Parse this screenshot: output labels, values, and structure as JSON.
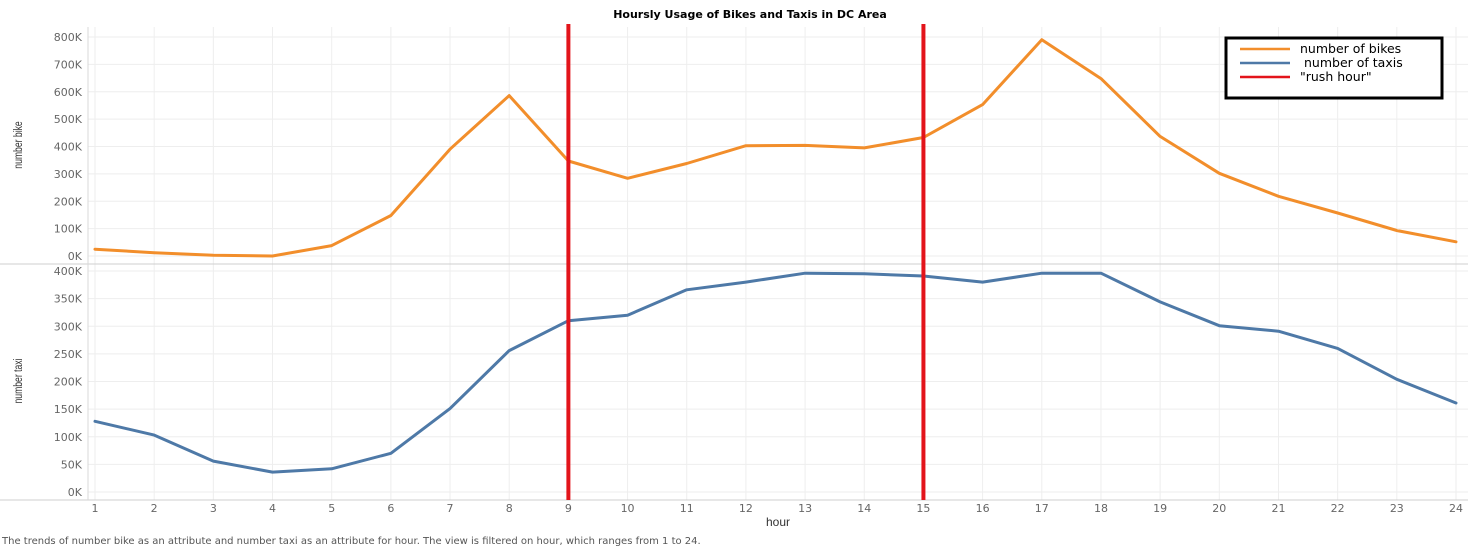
{
  "chart_data": {
    "type": "line",
    "title": "Hoursly Usage of Bikes and Taxis in DC Area",
    "xlabel": "hour",
    "x": [
      1,
      2,
      3,
      4,
      5,
      6,
      7,
      8,
      9,
      10,
      11,
      12,
      13,
      14,
      15,
      16,
      17,
      18,
      19,
      20,
      21,
      22,
      23,
      24
    ],
    "grid": true,
    "panels": [
      {
        "ylabel": "number bike",
        "ylim": [
          0,
          800000
        ],
        "yticks": [
          0,
          100000,
          200000,
          300000,
          400000,
          500000,
          600000,
          700000,
          800000
        ],
        "ytick_labels": [
          "0K",
          "100K",
          "200K",
          "300K",
          "400K",
          "500K",
          "600K",
          "700K",
          "800K"
        ],
        "series": [
          {
            "name": "number of bikes",
            "color": "#f28e2b",
            "values": [
              25000,
              12000,
              3000,
              0,
              38000,
              148000,
              390000,
              586000,
              347000,
              284000,
              338000,
              403000,
              404000,
              395000,
              433000,
              553000,
              790000,
              648000,
              437000,
              302000,
              218000,
              157000,
              93000,
              52000
            ]
          }
        ]
      },
      {
        "ylabel": "number taxi",
        "ylim": [
          0,
          400000
        ],
        "yticks": [
          0,
          50000,
          100000,
          150000,
          200000,
          250000,
          300000,
          350000,
          400000
        ],
        "ytick_labels": [
          "0K",
          "50K",
          "100K",
          "150K",
          "200K",
          "250K",
          "300K",
          "350K",
          "400K"
        ],
        "series": [
          {
            "name": "number of taxis",
            "color": "#4e79a7",
            "values": [
              128000,
              103000,
              56000,
              36000,
              42000,
              70000,
              151000,
              256000,
              310000,
              320000,
              366000,
              380000,
              396000,
              395000,
              391000,
              380000,
              396000,
              396000,
              344000,
              301000,
              291000,
              260000,
              204000,
              161000
            ]
          }
        ]
      }
    ],
    "rush_hours": [
      9,
      15
    ],
    "rush_color": "#e3141b",
    "legend": {
      "position": "top-right",
      "entries": [
        {
          "label": "number of bikes",
          "color": "#f28e2b"
        },
        {
          "label": "number of taxis",
          "color": "#4e79a7"
        },
        {
          "label": "\"rush hour\"",
          "color": "#e3141b"
        }
      ]
    }
  },
  "caption": "The trends of number bike as an attribute and number taxi as an attribute for hour. The view is filtered on hour, which ranges from 1 to 24."
}
